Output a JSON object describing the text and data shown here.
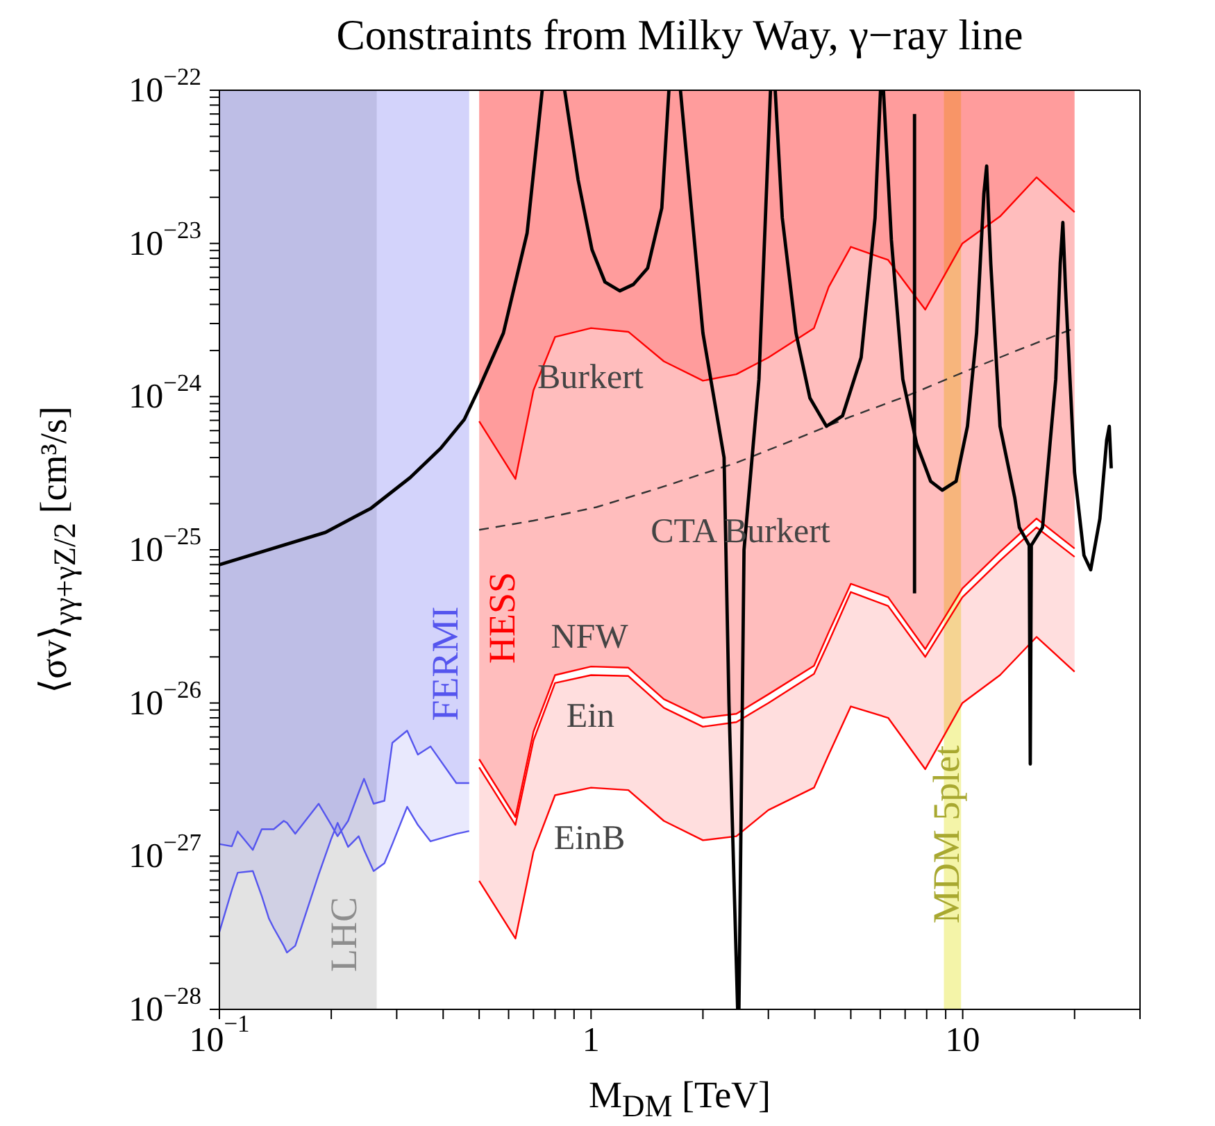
{
  "chart_data": {
    "type": "line",
    "title": "Constraints from Milky Way, γ−ray line",
    "xlabel": "M$_{DM}$ [TeV]",
    "ylabel": "⟨σv⟩$_{γγ+γZ/2}$ [cm³/s]",
    "log": "xy",
    "xlim": [
      0.1,
      30
    ],
    "ylim": [
      1e-28,
      1e-22
    ],
    "xticks": [
      {
        "value": 0.1,
        "label": "10$^{−1}$"
      },
      {
        "value": 0.2,
        "label": null
      },
      {
        "value": 0.3,
        "label": null
      },
      {
        "value": 0.4,
        "label": null
      },
      {
        "value": 0.5,
        "label": null
      },
      {
        "value": 0.6,
        "label": null
      },
      {
        "value": 0.7,
        "label": null
      },
      {
        "value": 0.8,
        "label": null
      },
      {
        "value": 0.9,
        "label": null
      },
      1,
      {
        "value": 2,
        "label": null
      },
      {
        "value": 3,
        "label": null
      },
      {
        "value": 4,
        "label": null
      },
      {
        "value": 5,
        "label": null
      },
      {
        "value": 6,
        "label": null
      },
      {
        "value": 7,
        "label": null
      },
      {
        "value": 8,
        "label": null
      },
      {
        "value": 9,
        "label": null
      },
      10,
      {
        "value": 20,
        "label": null
      },
      {
        "value": 30,
        "label": null
      }
    ],
    "yticks": [
      {
        "value": 1e-28,
        "label": "10$^{−28}$"
      },
      {
        "value": 2e-28,
        "label": null
      },
      {
        "value": 3e-28,
        "label": null
      },
      {
        "value": 4e-28,
        "label": null
      },
      {
        "value": 5e-28,
        "label": null
      },
      {
        "value": 6e-28,
        "label": null
      },
      {
        "value": 7e-28,
        "label": null
      },
      {
        "value": 8e-28,
        "label": null
      },
      {
        "value": 9e-28,
        "label": null
      },
      {
        "value": 1e-27,
        "label": "10$^{−27}$"
      },
      {
        "value": 2e-27,
        "label": null
      },
      {
        "value": 3e-27,
        "label": null
      },
      {
        "value": 4e-27,
        "label": null
      },
      {
        "value": 5e-27,
        "label": null
      },
      {
        "value": 6e-27,
        "label": null
      },
      {
        "value": 7e-27,
        "label": null
      },
      {
        "value": 8e-27,
        "label": null
      },
      {
        "value": 9e-27,
        "label": null
      },
      {
        "value": 1e-26,
        "label": "10$^{−26}$"
      },
      {
        "value": 2e-26,
        "label": null
      },
      {
        "value": 3e-26,
        "label": null
      },
      {
        "value": 4e-26,
        "label": null
      },
      {
        "value": 5e-26,
        "label": null
      },
      {
        "value": 6e-26,
        "label": null
      },
      {
        "value": 7e-26,
        "label": null
      },
      {
        "value": 8e-26,
        "label": null
      },
      {
        "value": 9e-26,
        "label": null
      },
      {
        "value": 1e-25,
        "label": "10$^{−25}$"
      },
      {
        "value": 2e-25,
        "label": null
      },
      {
        "value": 3e-25,
        "label": null
      },
      {
        "value": 4e-25,
        "label": null
      },
      {
        "value": 5e-25,
        "label": null
      },
      {
        "value": 6e-25,
        "label": null
      },
      {
        "value": 7e-25,
        "label": null
      },
      {
        "value": 8e-25,
        "label": null
      },
      {
        "value": 9e-25,
        "label": null
      },
      {
        "value": 1e-24,
        "label": "10$^{−24}$"
      },
      {
        "value": 2e-24,
        "label": null
      },
      {
        "value": 3e-24,
        "label": null
      },
      {
        "value": 4e-24,
        "label": null
      },
      {
        "value": 5e-24,
        "label": null
      },
      {
        "value": 6e-24,
        "label": null
      },
      {
        "value": 7e-24,
        "label": null
      },
      {
        "value": 8e-24,
        "label": null
      },
      {
        "value": 9e-24,
        "label": null
      },
      {
        "value": 1e-23,
        "label": "10$^{−23}$"
      },
      {
        "value": 2e-23,
        "label": null
      },
      {
        "value": 3e-23,
        "label": null
      },
      {
        "value": 4e-23,
        "label": null
      },
      {
        "value": 5e-23,
        "label": null
      },
      {
        "value": 6e-23,
        "label": null
      },
      {
        "value": 7e-23,
        "label": null
      },
      {
        "value": 8e-23,
        "label": null
      },
      {
        "value": 9e-23,
        "label": null
      },
      {
        "value": 1e-22,
        "label": "10$^{−22}$"
      }
    ],
    "bands": [
      {
        "axis": "x",
        "from": 0.1,
        "to": 0.265,
        "label": "LHC",
        "color": "#e3e3e3"
      },
      {
        "axis": "x",
        "from": 8.9,
        "to": 9.9,
        "label": "MDM 5plet",
        "color": "#f4f4a8"
      }
    ],
    "annotations": [
      "FERMI",
      "HESS"
    ],
    "series": [
      {
        "name": "EinB",
        "color": "#ff0000",
        "x": [
          0.5,
          0.626,
          0.7,
          0.8,
          1.0,
          1.26,
          1.57,
          2.0,
          2.46,
          3.0,
          3.98,
          4.36,
          5.0,
          6.3,
          7.93,
          9.98,
          12.6,
          15.8,
          20
        ],
        "values": [
          6.9e-28,
          2.9e-28,
          1.07e-27,
          2.5e-27,
          2.8e-27,
          2.7e-27,
          1.7e-27,
          1.27e-27,
          1.35e-27,
          2e-27,
          2.8e-27,
          4.6e-27,
          9.5e-27,
          8e-27,
          3.7e-27,
          1e-26,
          1.52e-26,
          2.7e-26,
          1.6e-26
        ],
        "lower": [
          6.9e-28,
          2.9e-28,
          1.07e-27,
          2.5e-27,
          2.8e-27,
          2.7e-27,
          1.7e-27,
          1.27e-27,
          1.35e-27,
          2e-27,
          2.8e-27,
          4.6e-27,
          9.5e-27,
          8e-27,
          3.7e-27,
          1e-26,
          1.52e-26,
          2.7e-26,
          1.6e-26
        ],
        "upper": [
          3.8e-27,
          1.6e-27,
          5.7e-27,
          1.35e-26,
          1.52e-26,
          1.5e-26,
          9.3e-27,
          7e-27,
          7.5e-27,
          1e-26,
          1.55e-26,
          2.5e-26,
          5.3e-26,
          4.3e-26,
          2e-26,
          4.9e-26,
          8.5e-26,
          1.4e-25,
          9e-26
        ]
      },
      {
        "name": "Ein",
        "color": "#ff0000",
        "x": [
          0.5,
          0.626,
          0.7,
          0.8,
          1.0,
          1.26,
          1.57,
          2.0,
          2.46,
          3.0,
          3.98,
          4.36,
          5.0,
          6.3,
          7.93,
          9.98,
          12.6,
          15.8,
          20
        ],
        "values": [
          3.8e-27,
          1.6e-27,
          5.7e-27,
          1.35e-26,
          1.52e-26,
          1.5e-26,
          9.3e-27,
          7e-27,
          7.5e-27,
          1e-26,
          1.55e-26,
          2.5e-26,
          5.3e-26,
          4.3e-26,
          2e-26,
          4.9e-26,
          8.5e-26,
          1.4e-25,
          9e-26
        ]
      },
      {
        "name": "NFW",
        "color": "#ff0000",
        "x": [
          0.5,
          0.626,
          0.7,
          0.8,
          1.0,
          1.26,
          1.57,
          2.0,
          2.46,
          3.0,
          3.98,
          4.36,
          5.0,
          6.3,
          7.93,
          9.98,
          12.6,
          15.8,
          20
        ],
        "values": [
          4.3e-27,
          1.8e-27,
          6.5e-27,
          1.52e-26,
          1.73e-26,
          1.7e-26,
          1.06e-26,
          8e-27,
          8.5e-27,
          1.14e-26,
          1.75e-26,
          2.9e-26,
          6e-26,
          4.9e-26,
          2.25e-26,
          5.6e-26,
          9.7e-26,
          1.6e-25,
          1.02e-25
        ],
        "lower": [
          4.3e-27,
          1.8e-27,
          6.5e-27,
          1.52e-26,
          1.73e-26,
          1.7e-26,
          1.06e-26,
          8e-27,
          8.5e-27,
          1.14e-26,
          1.75e-26,
          2.9e-26,
          6e-26,
          4.9e-26,
          2.25e-26,
          5.6e-26,
          9.7e-26,
          1.6e-25,
          1.02e-25
        ],
        "upper": [
          6.9e-25,
          2.9e-25,
          1.1e-24,
          2.45e-24,
          2.8e-24,
          2.65e-24,
          1.7e-24,
          1.27e-24,
          1.4e-24,
          1.8e-24,
          2.8e-24,
          5.2e-24,
          9.5e-24,
          7.8e-24,
          3.7e-24,
          1e-23,
          1.5e-23,
          2.7e-23,
          1.6e-23
        ]
      },
      {
        "name": "Burkert",
        "color": "#ff0000",
        "x": [
          0.5,
          0.626,
          0.7,
          0.8,
          1.0,
          1.26,
          1.57,
          2.0,
          2.46,
          3.0,
          3.98,
          4.36,
          5.0,
          6.3,
          7.93,
          9.98,
          12.6,
          15.8,
          20
        ],
        "values": [
          6.9e-25,
          2.9e-25,
          1.1e-24,
          2.45e-24,
          2.8e-24,
          2.65e-24,
          1.7e-24,
          1.27e-24,
          1.4e-24,
          1.8e-24,
          2.8e-24,
          5.2e-24,
          9.5e-24,
          7.8e-24,
          3.7e-24,
          1e-23,
          1.5e-23,
          2.7e-23,
          1.6e-23
        ],
        "lower": [
          6.9e-25,
          2.9e-25,
          1.1e-24,
          2.45e-24,
          2.8e-24,
          2.65e-24,
          1.7e-24,
          1.27e-24,
          1.4e-24,
          1.8e-24,
          2.8e-24,
          5.2e-24,
          9.5e-24,
          7.8e-24,
          3.7e-24,
          1e-23,
          1.5e-23,
          2.7e-23,
          1.6e-23
        ],
        "upper": [
          1e-22,
          1e-22,
          1e-22,
          1e-22,
          1e-22,
          1e-22,
          1e-22,
          1e-22,
          1e-22,
          1e-22,
          1e-22,
          1e-22,
          1e-22,
          1e-22,
          1e-22,
          1e-22,
          1e-22,
          1e-22,
          1e-22
        ]
      },
      {
        "color": "#5555ee",
        "x": [
          0.1,
          0.108,
          0.112,
          0.123,
          0.13,
          0.136,
          0.14,
          0.149,
          0.152,
          0.16,
          0.185,
          0.2,
          0.208,
          0.222,
          0.237,
          0.245,
          0.26,
          0.278,
          0.292,
          0.32,
          0.342,
          0.37,
          0.434,
          0.47
        ],
        "values": [
          3.2e-28,
          6e-28,
          7.8e-28,
          8e-28,
          5.5e-28,
          3.9e-28,
          3.4e-28,
          2.6e-28,
          2.35e-28,
          2.6e-28,
          7.6e-28,
          1.3e-27,
          1.65e-27,
          1.15e-27,
          1.35e-27,
          1.1e-27,
          8e-28,
          9e-28,
          1.2e-27,
          2.1e-27,
          1.6e-27,
          1.25e-27,
          1.4e-27,
          1.46e-27
        ],
        "lower": [
          3.2e-28,
          6e-28,
          7.8e-28,
          8e-28,
          5.5e-28,
          3.9e-28,
          3.4e-28,
          2.6e-28,
          2.35e-28,
          2.6e-28,
          7.6e-28,
          1.3e-27,
          1.65e-27,
          1.15e-27,
          1.35e-27,
          1.1e-27,
          8e-28,
          9e-28,
          1.2e-27,
          2.1e-27,
          1.6e-27,
          1.25e-27,
          1.4e-27,
          1.46e-27
        ],
        "upper": [
          1.2e-27,
          1.16e-27,
          1.45e-27,
          1.1e-27,
          1.5e-27,
          1.5e-27,
          1.5e-27,
          1.7e-27,
          1.65e-27,
          1.4e-27,
          2.2e-27,
          1.6e-27,
          1.35e-27,
          1.7e-27,
          2.6e-27,
          3.2e-27,
          2.2e-27,
          2.3e-27,
          5.5e-27,
          6.6e-27,
          4.6e-27,
          5.2e-27,
          3e-27,
          3e-27
        ]
      },
      {
        "color": "#5555ee",
        "x": [
          0.1,
          0.108,
          0.112,
          0.123,
          0.13,
          0.136,
          0.14,
          0.149,
          0.152,
          0.16,
          0.185,
          0.2,
          0.208,
          0.222,
          0.237,
          0.245,
          0.26,
          0.278,
          0.292,
          0.32,
          0.342,
          0.37,
          0.434,
          0.47
        ],
        "values": [
          1.2e-27,
          1.16e-27,
          1.45e-27,
          1.1e-27,
          1.5e-27,
          1.5e-27,
          1.5e-27,
          1.7e-27,
          1.65e-27,
          1.4e-27,
          2.2e-27,
          1.6e-27,
          1.35e-27,
          1.7e-27,
          2.6e-27,
          3.2e-27,
          2.2e-27,
          2.3e-27,
          5.5e-27,
          6.6e-27,
          4.6e-27,
          5.2e-27,
          3e-27,
          3e-27
        ],
        "lower": [
          1.2e-27,
          1.16e-27,
          1.45e-27,
          1.1e-27,
          1.5e-27,
          1.5e-27,
          1.5e-27,
          1.7e-27,
          1.65e-27,
          1.4e-27,
          2.2e-27,
          1.6e-27,
          1.35e-27,
          1.7e-27,
          2.6e-27,
          3.2e-27,
          2.2e-27,
          2.3e-27,
          5.5e-27,
          6.6e-27,
          4.6e-27,
          5.2e-27,
          3e-27,
          3e-27
        ],
        "upper": [
          1e-22,
          1e-22,
          1e-22,
          1e-22,
          1e-22,
          1e-22,
          1e-22,
          1e-22,
          1e-22,
          1e-22,
          1e-22,
          1e-22,
          1e-22,
          1e-22,
          1e-22,
          1e-22,
          1e-22,
          1e-22,
          1e-22,
          1e-22,
          1e-22,
          1e-22,
          1e-22,
          1e-22
        ]
      },
      {
        "name": "CTA Burkert",
        "color": "#333333",
        "line_style": "dashed",
        "x": [
          0.5,
          0.7,
          1.035,
          1.5,
          2.46,
          3.5,
          5.0,
          7.0,
          10.3,
          14.0,
          20
        ],
        "values": [
          1.35e-25,
          1.55e-25,
          1.9e-25,
          2.5e-25,
          3.7e-25,
          5.2e-25,
          7.4e-25,
          1e-24,
          1.48e-24,
          2e-24,
          2.8e-24
        ]
      },
      {
        "color": "#000000",
        "x": [
          0.1,
          0.193,
          0.256,
          0.326,
          0.394,
          0.456,
          0.501,
          0.581,
          0.673,
          0.739,
          0.79,
          0.849,
          0.923,
          1.006,
          1.09,
          1.195,
          1.3,
          1.42,
          1.55,
          1.62,
          1.68,
          1.74,
          2.0,
          2.28,
          2.35,
          2.48,
          2.5,
          2.58,
          2.83,
          3.04,
          3.08,
          3.13,
          3.27,
          3.56,
          3.88,
          4.3,
          4.75,
          5.33,
          5.81,
          6.01,
          6.06,
          6.12,
          6.43,
          6.9,
          7.52,
          8.2,
          8.81,
          9.6,
          10.3,
          10.9,
          11.4,
          11.6,
          11.9,
          12.6,
          13.8,
          14.2,
          15.1,
          15.2,
          15.3,
          16.4,
          17.8,
          18.3,
          18.6,
          18.9,
          20.0,
          21.2,
          22.1,
          23.4,
          24.4,
          24.8,
          25.1
        ],
        "values": [
          8e-26,
          1.3e-25,
          1.87e-25,
          2.96e-25,
          4.6e-25,
          7.1e-25,
          1.15e-24,
          2.6e-24,
          1.17e-23,
          1e-22,
          null,
          1e-22,
          2.6e-23,
          9.1e-24,
          5.6e-24,
          4.9e-24,
          5.4e-24,
          6.9e-24,
          1.7e-23,
          1e-22,
          null,
          1e-22,
          2.6e-24,
          4e-25,
          1e-26,
          1e-28,
          1e-28,
          1e-25,
          1.3e-24,
          1e-22,
          null,
          1e-22,
          1.47e-23,
          2.6e-24,
          9.8e-25,
          6.4e-25,
          7.5e-25,
          1.8e-24,
          1.47e-23,
          1e-22,
          null,
          1e-22,
          1.05e-23,
          1.3e-24,
          4.9e-25,
          2.8e-25,
          2.45e-25,
          2.8e-25,
          6.4e-25,
          2.6e-24,
          2.1e-23,
          3.2e-23,
          7.4e-24,
          6.4e-25,
          2.2e-25,
          1.4e-25,
          1.07e-25,
          4e-27,
          1.07e-25,
          1.4e-25,
          1.3e-24,
          7.4e-24,
          1.37e-23,
          5.2e-24,
          3.2e-25,
          9.2e-26,
          7.4e-26,
          1.6e-25,
          5.2e-25,
          6.4e-25,
          3.4e-25
        ]
      },
      {
        "color": "#000000",
        "x": [
          7.42,
          7.42
        ],
        "values": [
          7e-23,
          5.2e-26
        ]
      }
    ]
  }
}
